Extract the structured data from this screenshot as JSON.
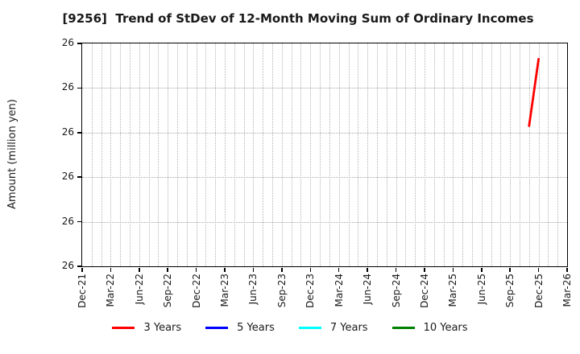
{
  "chart_data": {
    "type": "line",
    "title": "[9256]  Trend of StDev of 12-Month Moving Sum of Ordinary Incomes",
    "ylabel": "Amount (million yen)",
    "xlabel": "",
    "x_tick_labels": [
      "Dec-21",
      "Mar-22",
      "Jun-22",
      "Sep-22",
      "Dec-22",
      "Mar-23",
      "Jun-23",
      "Sep-23",
      "Dec-23",
      "Mar-24",
      "Jun-24",
      "Sep-24",
      "Dec-24",
      "Mar-25",
      "Jun-25",
      "Sep-25",
      "Dec-25",
      "Mar-26"
    ],
    "y_tick_labels": [
      "26",
      "26",
      "26",
      "26",
      "26",
      "26"
    ],
    "x_axis": {
      "start": "Dec-21",
      "end": "Mar-26",
      "total_months": 51,
      "months_per_labeled_tick": 3
    },
    "y_axis": {
      "unit": "million yen",
      "all_ticks_display_value": "26"
    },
    "grid": {
      "show": true,
      "style": "dotted",
      "color": "#b4b4b4",
      "vertical_every_months": 1,
      "horizontal_at_each_ytick": true
    },
    "legend": {
      "position": "bottom-center",
      "entries": [
        {
          "label": "3 Years",
          "color": "#ff0000"
        },
        {
          "label": "5 Years",
          "color": "#0000ff"
        },
        {
          "label": "7 Years",
          "color": "#00ffff"
        },
        {
          "label": "10 Years",
          "color": "#008000"
        }
      ]
    },
    "series": [
      {
        "name": "3 Years",
        "color": "#ff0000",
        "points": [
          {
            "x_label": "Nov-25",
            "month_index": 47,
            "y_frac": 0.63,
            "y_display": "26"
          },
          {
            "x_label": "Dec-25",
            "month_index": 48,
            "y_frac": 0.93,
            "y_display": "26"
          }
        ]
      },
      {
        "name": "5 Years",
        "color": "#0000ff",
        "points": []
      },
      {
        "name": "7 Years",
        "color": "#00ffff",
        "points": []
      },
      {
        "name": "10 Years",
        "color": "#008000",
        "points": []
      }
    ]
  }
}
